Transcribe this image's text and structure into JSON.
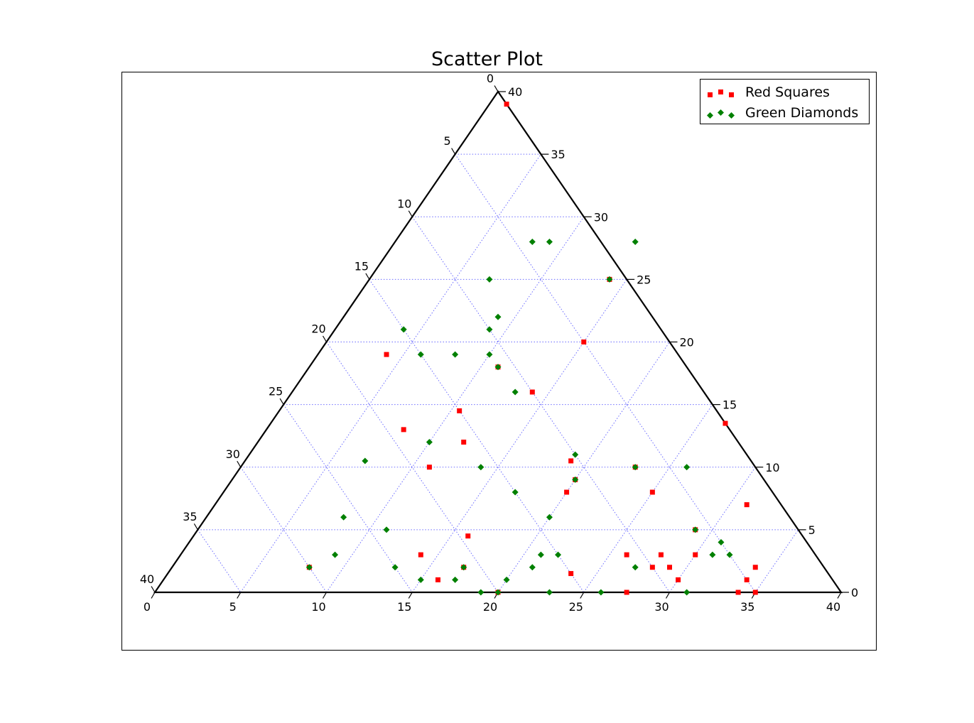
{
  "chart_data": {
    "type": "scatter",
    "plot_kind": "ternary",
    "title": "Scatter Plot",
    "scale": 40,
    "grid": true,
    "grid_style": "dotted",
    "grid_color": "#6b6bff",
    "tick_step": 5,
    "tick_labels": [
      "0",
      "5",
      "10",
      "15",
      "20",
      "25",
      "30",
      "35",
      "40"
    ],
    "legend_position": "top-right",
    "series": [
      {
        "name": "Red Squares",
        "marker": "square",
        "color": "#ff0000",
        "points": [
          [
            1,
            39
          ],
          [
            26.5,
            13.5
          ],
          [
            16,
            4.5
          ],
          [
            11,
            18
          ],
          [
            19,
            10.5
          ],
          [
            28,
            2
          ],
          [
            20,
            8
          ],
          [
            14,
            16
          ],
          [
            27.5,
            0
          ],
          [
            14,
            3
          ],
          [
            31,
            7
          ],
          [
            8,
            13
          ],
          [
            23,
            10
          ],
          [
            25,
            8
          ],
          [
            20,
            0
          ],
          [
            10.5,
            14.5
          ],
          [
            12,
            12
          ],
          [
            8,
            2
          ],
          [
            35,
            0
          ],
          [
            16,
            1
          ],
          [
            23.5,
            1.5
          ],
          [
            26,
            3
          ],
          [
            28,
            3
          ],
          [
            34,
            0
          ],
          [
            34,
            2
          ],
          [
            29,
            2
          ],
          [
            34,
            1
          ],
          [
            30,
            3
          ],
          [
            29,
            5
          ],
          [
            20,
            9
          ],
          [
            30,
            1
          ],
          [
            15,
            20
          ],
          [
            14,
            25
          ],
          [
            11,
            10
          ],
          [
            17,
            2
          ],
          [
            4,
            19
          ]
        ]
      },
      {
        "name": "Green Diamonds",
        "marker": "diamond",
        "color": "#008000",
        "points": [
          [
            14,
            25
          ],
          [
            7,
            10.5
          ],
          [
            6,
            19
          ],
          [
            20,
            6
          ],
          [
            8,
            19
          ],
          [
            23,
            0
          ],
          [
            31,
            3
          ],
          [
            10,
            12
          ],
          [
            29,
            5
          ],
          [
            13,
            16
          ],
          [
            17,
            2
          ],
          [
            15,
            1
          ],
          [
            19,
            11
          ],
          [
            20,
            1
          ],
          [
            17,
            1
          ],
          [
            20,
            0
          ],
          [
            27,
            2
          ],
          [
            19,
            0
          ],
          [
            11,
            18
          ],
          [
            9,
            28
          ],
          [
            26,
            10
          ],
          [
            9,
            22
          ],
          [
            22,
            3
          ],
          [
            8,
            2
          ],
          [
            8,
            6
          ],
          [
            26,
            0
          ],
          [
            20,
            9
          ],
          [
            14,
            10
          ],
          [
            14,
            28
          ],
          [
            9,
            3
          ],
          [
            7,
            25
          ],
          [
            4,
            21
          ],
          [
            21,
            3
          ],
          [
            21,
            2
          ],
          [
            31,
            0
          ],
          [
            10,
            19
          ],
          [
            17,
            8
          ],
          [
            11,
            5
          ],
          [
            32,
            3
          ],
          [
            31,
            4
          ],
          [
            8,
            28
          ],
          [
            23,
            10
          ],
          [
            13,
            2
          ],
          [
            9,
            21
          ]
        ]
      }
    ]
  }
}
